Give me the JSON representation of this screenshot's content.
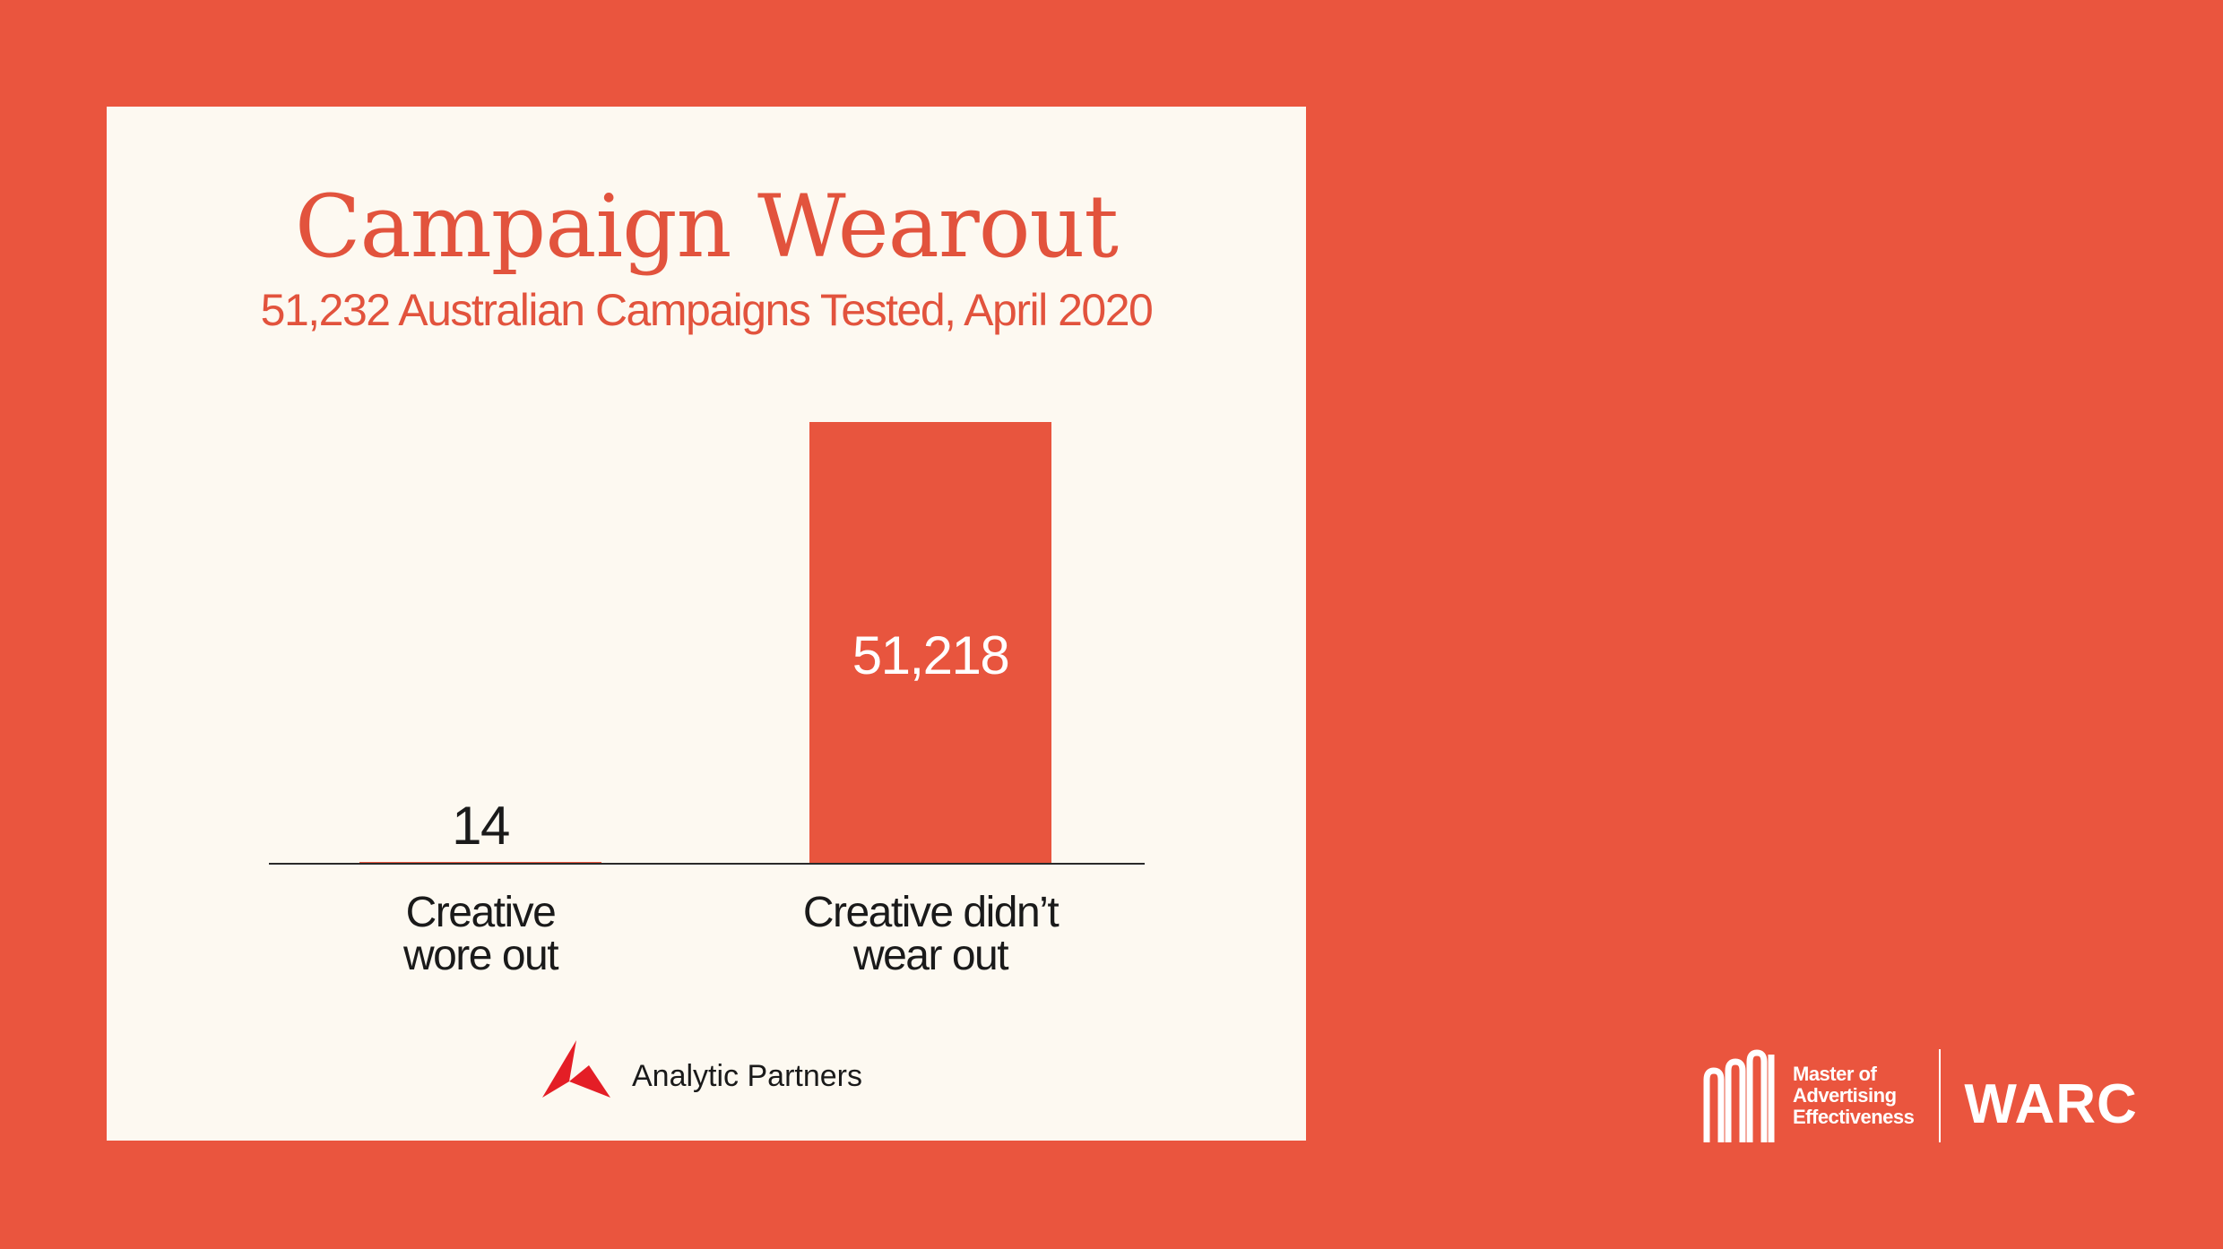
{
  "chart_data": {
    "type": "bar",
    "title": "Campaign Wearout",
    "subtitle": "51,232 Australian Campaigns Tested, April 2020",
    "categories": [
      "Creative wore out",
      "Creative didn’t wear out"
    ],
    "category_lines": [
      [
        "Creative",
        "wore out"
      ],
      [
        "Creative didn’t",
        "wear out"
      ]
    ],
    "values": [
      14,
      51218
    ],
    "data_labels": [
      "14",
      "51,218"
    ],
    "ylim": [
      0,
      51218
    ],
    "grid": false,
    "legend": "none",
    "bar_color": "#E8553E"
  },
  "branding": {
    "source_logo_text": "Analytic Partners",
    "mae_lines": [
      "Master of",
      "Advertising",
      "Effectiveness"
    ],
    "warc_text": "WARC"
  },
  "colors": {
    "background": "#EA553E",
    "card": "#FDF9F1",
    "accent": "#E2533D",
    "text_dark": "#1A1A1A"
  }
}
